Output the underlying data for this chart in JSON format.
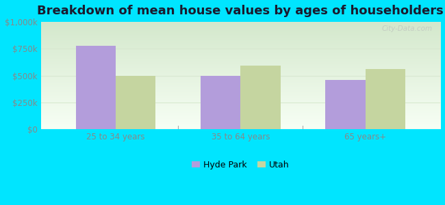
{
  "title": "Breakdown of mean house values by ages of householders",
  "categories": [
    "25 to 34 years",
    "35 to 64 years",
    "65 years+"
  ],
  "hyde_park_values": [
    775000,
    500000,
    460000
  ],
  "utah_values": [
    500000,
    590000,
    560000
  ],
  "hyde_park_color": "#b39ddb",
  "utah_color": "#c5d5a0",
  "background_color": "#00e5ff",
  "ylim": [
    0,
    1000000
  ],
  "yticks": [
    0,
    250000,
    500000,
    750000,
    1000000
  ],
  "ytick_labels": [
    "$0",
    "$250k",
    "$500k",
    "$750k",
    "$1,000k"
  ],
  "legend_labels": [
    "Hyde Park",
    "Utah"
  ],
  "watermark": "City-Data.com",
  "bar_width": 0.32,
  "title_fontsize": 13,
  "tick_fontsize": 8.5,
  "legend_fontsize": 9,
  "tick_color": "#888888",
  "title_color": "#1a1a2e",
  "grid_color": "#d8e8d0",
  "plot_bg_top": "#d4e8cc",
  "plot_bg_bottom": "#f8fff5"
}
